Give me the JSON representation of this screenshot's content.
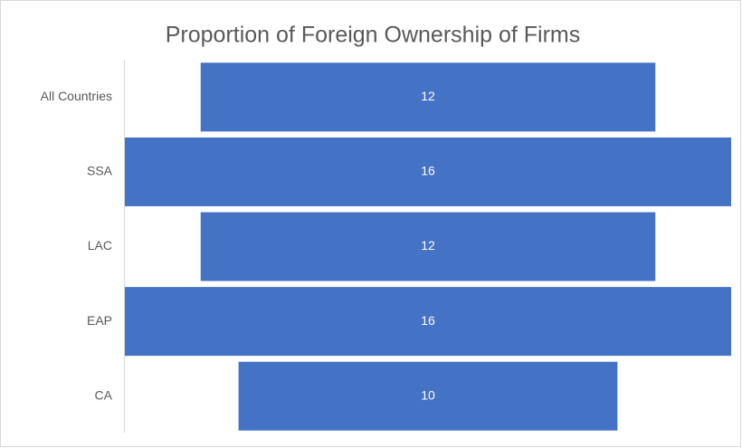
{
  "chart_data": {
    "type": "funnel",
    "title": "Proportion of Foreign Ownership of Firms",
    "categories": [
      "All Countries",
      "SSA",
      "LAC",
      "EAP",
      "CA"
    ],
    "values": [
      12,
      16,
      12,
      16,
      10
    ],
    "color": "#4472c4"
  }
}
